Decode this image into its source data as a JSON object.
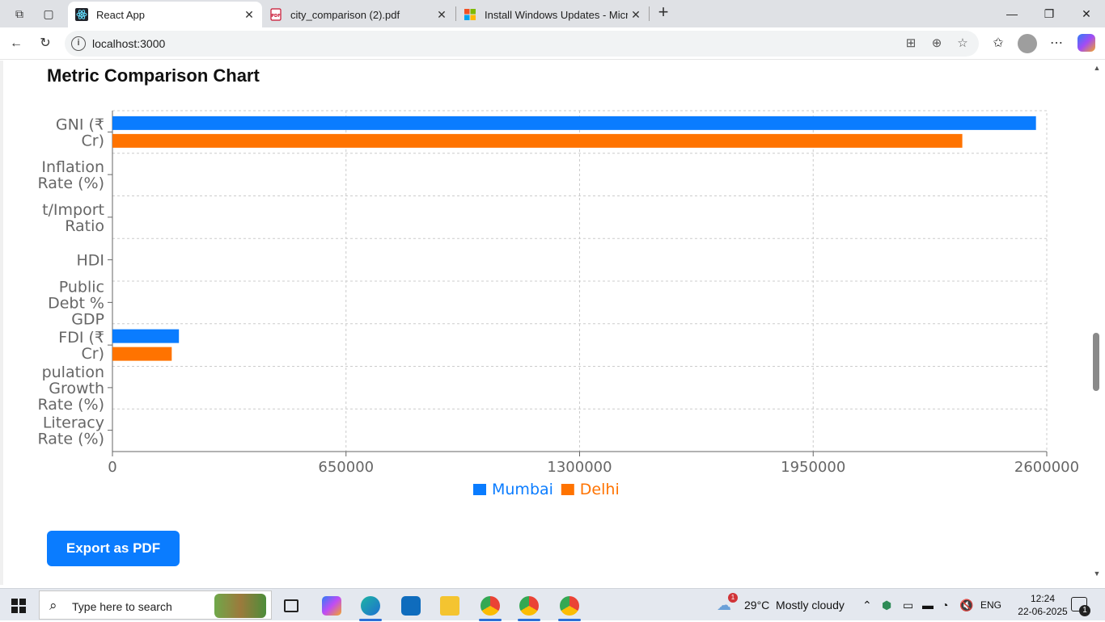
{
  "browser": {
    "tabs": [
      {
        "title": "React App",
        "active": true,
        "icon": "react-icon"
      },
      {
        "title": "city_comparison (2).pdf",
        "active": false,
        "icon": "pdf-icon"
      },
      {
        "title": "Install Windows Updates - Micros",
        "active": false,
        "icon": "windows-icon"
      }
    ],
    "url": "localhost:3000"
  },
  "page": {
    "title": "Metric Comparison Chart",
    "export_label": "Export as PDF"
  },
  "chart_data": {
    "type": "bar",
    "orientation": "horizontal",
    "title": "Metric Comparison Chart",
    "categories": [
      "GNI (₹ Cr)",
      "Inflation Rate (%)",
      "Export/Import Ratio",
      "HDI",
      "Public Debt % GDP",
      "FDI (₹ Cr)",
      "Population Growth Rate (%)",
      "Literacy Rate (%)"
    ],
    "category_label_lines": [
      [
        "GNI (₹",
        "Cr)"
      ],
      [
        "Inflation",
        "Rate (%)"
      ],
      [
        "t/Import",
        "Ratio"
      ],
      [
        "HDI"
      ],
      [
        "Public",
        "Debt %",
        "GDP"
      ],
      [
        "FDI (₹",
        "Cr)"
      ],
      [
        "pulation",
        "Growth",
        "Rate (%)"
      ],
      [
        "Literacy",
        "Rate (%)"
      ]
    ],
    "series": [
      {
        "name": "Mumbai",
        "color": "#0a7cff",
        "values": [
          2570000,
          0,
          0,
          0,
          0,
          185000,
          0,
          0
        ]
      },
      {
        "name": "Delhi",
        "color": "#ff7300",
        "values": [
          2365000,
          0,
          0,
          0,
          0,
          165000,
          0,
          0
        ]
      }
    ],
    "xlim": [
      0,
      2600000
    ],
    "xticks": [
      "0",
      "650000",
      "1300000",
      "1950000",
      "2600000"
    ],
    "grid": true,
    "legend": "bottom-center"
  },
  "taskbar": {
    "search_placeholder": "Type here to search",
    "weather": "29°C  Mostly cloudy",
    "weather_badge": "1",
    "language": "ENG",
    "time": "12:24",
    "date": "22-06-2025",
    "notification_count": "1"
  }
}
